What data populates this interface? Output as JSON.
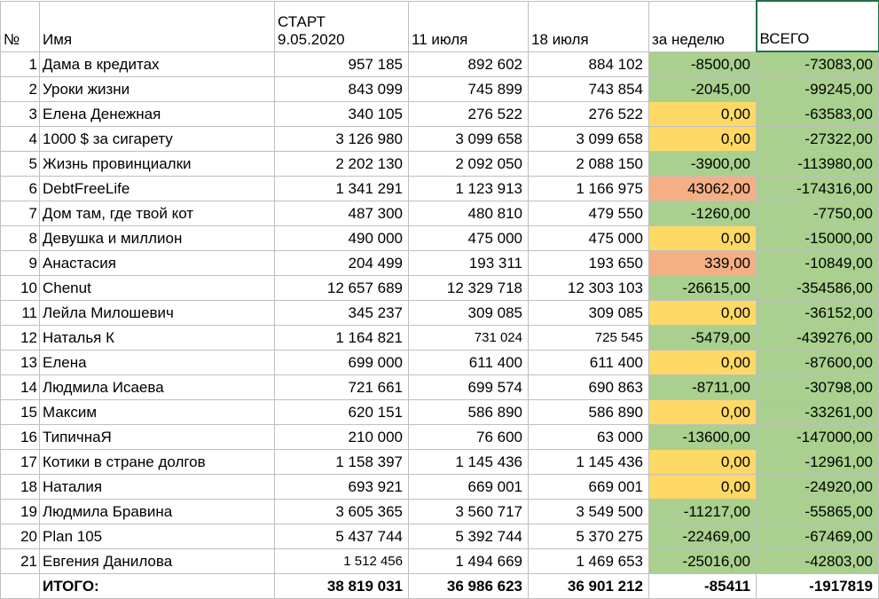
{
  "headers": {
    "num": "№",
    "name": "Имя",
    "start_line1": "СТАРТ",
    "start_line2": "9.05.2020",
    "jul11": "11 июля",
    "jul18": "18 июля",
    "week": "за неделю",
    "total": "ВСЕГО"
  },
  "rows": [
    {
      "n": "1",
      "name": "Дама в кредитах",
      "start": "957 185",
      "jul11": "892 602",
      "jul18": "884 102",
      "week": "-8500,00",
      "total": "-73083,00",
      "color": "green"
    },
    {
      "n": "2",
      "name": "Уроки жизни",
      "start": "843 099",
      "jul11": "745 899",
      "jul18": "743 854",
      "week": "-2045,00",
      "total": "-99245,00",
      "color": "green"
    },
    {
      "n": "3",
      "name": "Елена Денежная",
      "start": "340 105",
      "jul11": "276 522",
      "jul18": "276 522",
      "week": "0,00",
      "total": "-63583,00",
      "color": "yellow"
    },
    {
      "n": "4",
      "name": "1000 $ за сигарету",
      "start": "3 126 980",
      "jul11": "3 099 658",
      "jul18": "3 099 658",
      "week": "0,00",
      "total": "-27322,00",
      "color": "yellow"
    },
    {
      "n": "5",
      "name": "Жизнь провинциалки",
      "start": "2 202 130",
      "jul11": "2 092 050",
      "jul18": "2 088 150",
      "week": "-3900,00",
      "total": "-113980,00",
      "color": "green"
    },
    {
      "n": "6",
      "name": "DebtFreeLife",
      "start": "1 341 291",
      "jul11": "1 123 913",
      "jul18": "1 166 975",
      "week": "43062,00",
      "total": "-174316,00",
      "color": "orange"
    },
    {
      "n": "7",
      "name": "Дом там, где твой кот",
      "start": "487 300",
      "jul11": "480 810",
      "jul18": "479 550",
      "week": "-1260,00",
      "total": "-7750,00",
      "color": "green"
    },
    {
      "n": "8",
      "name": "Девушка и миллион",
      "start": "490 000",
      "jul11": "475 000",
      "jul18": "475 000",
      "week": "0,00",
      "total": "-15000,00",
      "color": "yellow"
    },
    {
      "n": "9",
      "name": "Анастасия",
      "start": "204 499",
      "jul11": "193 311",
      "jul18": "193 650",
      "week": "339,00",
      "total": "-10849,00",
      "color": "orange"
    },
    {
      "n": "10",
      "name": "Chenut",
      "start": "12 657 689",
      "jul11": "12 329 718",
      "jul18": "12 303 103",
      "week": "-26615,00",
      "total": "-354586,00",
      "color": "green"
    },
    {
      "n": "11",
      "name": "Лейла Милошевич",
      "start": "345 237",
      "jul11": "309 085",
      "jul18": "309 085",
      "week": "0,00",
      "total": "-36152,00",
      "color": "yellow"
    },
    {
      "n": "12",
      "name": "Наталья К",
      "start": "1 164 821",
      "jul11": "731 024",
      "jul18": "725 545",
      "week": "-5479,00",
      "total": "-439276,00",
      "color": "green",
      "small": true
    },
    {
      "n": "13",
      "name": "Елена",
      "start": "699 000",
      "jul11": "611 400",
      "jul18": "611 400",
      "week": "0,00",
      "total": "-87600,00",
      "color": "yellow"
    },
    {
      "n": "14",
      "name": "Людмила Исаева",
      "start": "721 661",
      "jul11": "699 574",
      "jul18": "690 863",
      "week": "-8711,00",
      "total": "-30798,00",
      "color": "green"
    },
    {
      "n": "15",
      "name": "Максим",
      "start": "620 151",
      "jul11": "586 890",
      "jul18": "586 890",
      "week": "0,00",
      "total": "-33261,00",
      "color": "yellow"
    },
    {
      "n": "16",
      "name": "ТипичнаЯ",
      "start": "210 000",
      "jul11": "76 600",
      "jul18": "63 000",
      "week": "-13600,00",
      "total": "-147000,00",
      "color": "green"
    },
    {
      "n": "17",
      "name": "Котики в стране долгов",
      "start": "1 158 397",
      "jul11": "1 145 436",
      "jul18": "1 145 436",
      "week": "0,00",
      "total": "-12961,00",
      "color": "yellow"
    },
    {
      "n": "18",
      "name": "Наталия",
      "start": "693 921",
      "jul11": "669 001",
      "jul18": "669 001",
      "week": "0,00",
      "total": "-24920,00",
      "color": "yellow"
    },
    {
      "n": "19",
      "name": "Людмила Бравина",
      "start": "3 605 365",
      "jul11": "3 560 717",
      "jul18": "3 549 500",
      "week": "-11217,00",
      "total": "-55865,00",
      "color": "green"
    },
    {
      "n": "20",
      "name": "Plan 105",
      "start": "5 437 744",
      "jul11": "5 392 744",
      "jul18": "5 370 275",
      "week": "-22469,00",
      "total": "-67469,00",
      "color": "green"
    },
    {
      "n": "21",
      "name": "Евгения Данилова",
      "start": "1 512 456",
      "jul11": "1 494 669",
      "jul18": "1 469 653",
      "week": "-25016,00",
      "total": "-42803,00",
      "color": "green",
      "small_start": true
    }
  ],
  "totals": {
    "label": "ИТОГО:",
    "start": "38 819 031",
    "jul11": "36 986 623",
    "jul18": "36 901 212",
    "week": "-85411",
    "total": "-1917819"
  }
}
